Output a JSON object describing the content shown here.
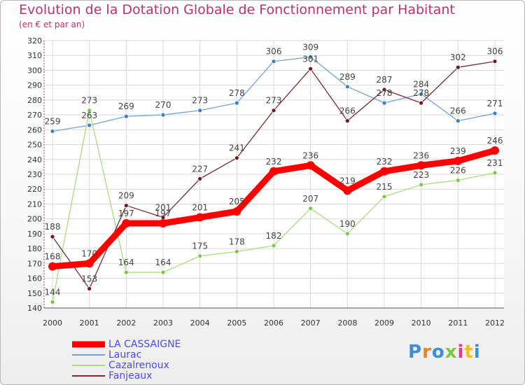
{
  "chart_data": {
    "type": "line",
    "title": "Evolution de la Dotation Globale de Fonctionnement par Habitant",
    "subtitle": "(en € et par an)",
    "xlabel": "",
    "ylabel": "",
    "ylim": [
      140,
      320
    ],
    "yticks": [
      "140",
      "150",
      "160",
      "170",
      "180",
      "190",
      "200",
      "210",
      "220",
      "230",
      "240",
      "250",
      "260",
      "270",
      "280",
      "290",
      "300",
      "310",
      "320"
    ],
    "categories": [
      "2000",
      "2001",
      "2002",
      "2003",
      "2004",
      "2005",
      "2006",
      "2007",
      "2008",
      "2009",
      "2010",
      "2011",
      "2012"
    ],
    "series": [
      {
        "name": "LA CASSAIGNE",
        "color": "#ff0000",
        "dot": "#ff0000",
        "values": [
          168,
          170,
          197,
          197,
          201,
          205,
          232,
          236,
          219,
          232,
          236,
          239,
          246
        ],
        "labels": [
          "168",
          "170",
          "197",
          "197",
          "201",
          "205",
          "232",
          "236",
          "219",
          "232",
          "236",
          "239",
          "246"
        ]
      },
      {
        "name": "Laurac",
        "color": "#6fa3d8",
        "dot": "#3a7fc8",
        "values": [
          259,
          263,
          269,
          270,
          273,
          278,
          306,
          309,
          289,
          278,
          284,
          266,
          271
        ],
        "labels": [
          "259",
          "263",
          "269",
          "270",
          "273",
          "278",
          "306",
          "309",
          "289",
          "278",
          "284",
          "266",
          "271"
        ]
      },
      {
        "name": "Cazalrenoux",
        "color": "#a6e07a",
        "dot": "#7ac943",
        "values": [
          144,
          273,
          164,
          164,
          175,
          178,
          182,
          207,
          190,
          215,
          223,
          226,
          231
        ],
        "labels": [
          "144",
          "273",
          "164",
          "164",
          "175",
          "178",
          "182",
          "207",
          "190",
          "215",
          "223",
          "226",
          "231"
        ]
      },
      {
        "name": "Fanjeaux",
        "color": "#7a2a34",
        "dot": "#6b1a24",
        "values": [
          188,
          153,
          209,
          201,
          227,
          241,
          273,
          301,
          266,
          287,
          278,
          302,
          306
        ],
        "labels": [
          "188",
          "153",
          "209",
          "201",
          "227",
          "241",
          "273",
          "301",
          "266",
          "287",
          "278",
          "302",
          "306"
        ]
      }
    ],
    "grid": true,
    "legend": "bottom-left"
  },
  "logo": {
    "text": "Proxiti",
    "colors": [
      "#3a8fd6",
      "#f08020",
      "#3a8fd6",
      "#7ac943",
      "#e23a8c",
      "#f0c020",
      "#3a8fd6"
    ]
  }
}
